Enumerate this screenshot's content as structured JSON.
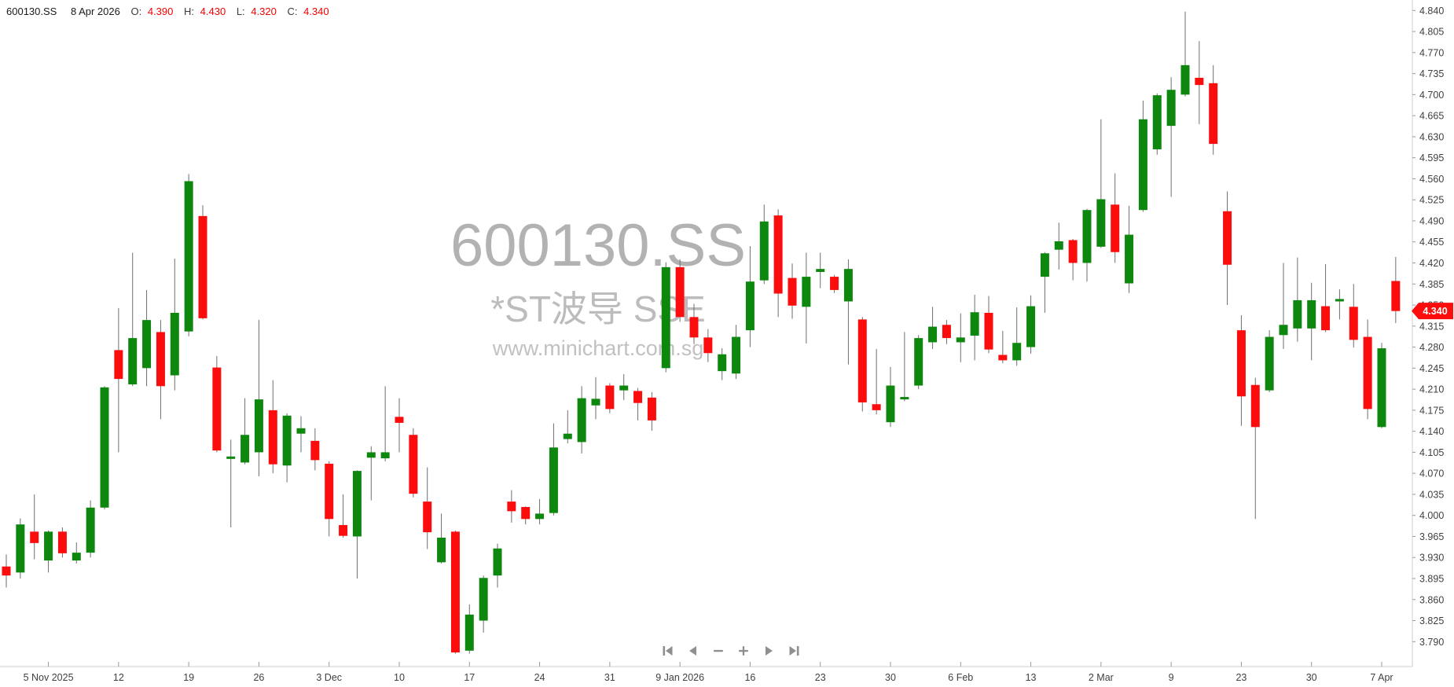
{
  "header": {
    "symbol": "600130.SS",
    "date": "8 Apr 2026",
    "open_label": "O:",
    "open": "4.390",
    "high_label": "H:",
    "high": "4.430",
    "low_label": "L:",
    "low": "4.320",
    "close_label": "C:",
    "close": "4.340"
  },
  "watermark": {
    "line1": "600130.SS",
    "line2": "*ST波导 SSE",
    "line3": "www.minichart.com.sg"
  },
  "price_badge": "4.340",
  "price_badge_value": 4.34,
  "colors": {
    "up": "#0e870e",
    "down": "#fb0d0d",
    "wick": "#6e6e6e",
    "axis_line": "#cfcfcf",
    "tick": "#9a9a9a",
    "axis_text": "#3f3f3f",
    "header_value": "#f20000",
    "watermark": "#b7b7b7",
    "badge_bg": "#fb0d0d",
    "badge_text": "#ffffff",
    "nav_icon": "#8f8f8f"
  },
  "nav": {
    "buttons": [
      {
        "name": "skip-start-button",
        "icon": "skip-start-icon"
      },
      {
        "name": "step-back-button",
        "icon": "triangle-left-icon"
      },
      {
        "name": "zoom-out-button",
        "icon": "minus-icon"
      },
      {
        "name": "zoom-in-button",
        "icon": "plus-icon"
      },
      {
        "name": "step-forward-button",
        "icon": "triangle-right-icon"
      },
      {
        "name": "skip-end-button",
        "icon": "skip-end-icon"
      }
    ]
  },
  "chart_data": {
    "type": "candlestick",
    "title": "600130.SS daily candlestick chart",
    "ylabel": "Price",
    "ylim": [
      3.79,
      4.84
    ],
    "grid": false,
    "y_axis": {
      "max": 4.84,
      "min": 3.79,
      "step": 0.035,
      "labels": [
        "4.840",
        "4.805",
        "4.770",
        "4.735",
        "4.700",
        "4.665",
        "4.630",
        "4.595",
        "4.560",
        "4.525",
        "4.490",
        "4.455",
        "4.420",
        "4.385",
        "4.350",
        "4.315",
        "4.280",
        "4.245",
        "4.210",
        "4.175",
        "4.140",
        "4.105",
        "4.070",
        "4.035",
        "4.000",
        "3.965",
        "3.930",
        "3.895",
        "3.860",
        "3.825",
        "3.790"
      ]
    },
    "x_axis": {
      "ticks": [
        {
          "label": "5 Nov 2025",
          "index": 3
        },
        {
          "label": "12",
          "index": 8
        },
        {
          "label": "19",
          "index": 13
        },
        {
          "label": "26",
          "index": 18
        },
        {
          "label": "3 Dec",
          "index": 23
        },
        {
          "label": "10",
          "index": 28
        },
        {
          "label": "17",
          "index": 33
        },
        {
          "label": "24",
          "index": 38
        },
        {
          "label": "31",
          "index": 43
        },
        {
          "label": "9 Jan 2026",
          "index": 48
        },
        {
          "label": "16",
          "index": 53
        },
        {
          "label": "23",
          "index": 58
        },
        {
          "label": "30",
          "index": 63
        },
        {
          "label": "6 Feb",
          "index": 68
        },
        {
          "label": "13",
          "index": 73
        },
        {
          "label": "2 Mar",
          "index": 78
        },
        {
          "label": "9",
          "index": 83
        },
        {
          "label": "23",
          "index": 88
        },
        {
          "label": "30",
          "index": 93
        },
        {
          "label": "7 Apr",
          "index": 98
        }
      ]
    },
    "candle_format": "[open, high, low, close]",
    "candles": [
      [
        3.915,
        3.935,
        3.88,
        3.9
      ],
      [
        3.905,
        3.995,
        3.895,
        3.985
      ],
      [
        3.973,
        4.035,
        3.927,
        3.954
      ],
      [
        3.925,
        3.975,
        3.905,
        3.973
      ],
      [
        3.973,
        3.98,
        3.93,
        3.937
      ],
      [
        3.925,
        3.955,
        3.92,
        3.938
      ],
      [
        3.938,
        4.025,
        3.93,
        4.013
      ],
      [
        4.013,
        4.215,
        4.01,
        4.213
      ],
      [
        4.275,
        4.345,
        4.105,
        4.227
      ],
      [
        4.218,
        4.437,
        4.215,
        4.295
      ],
      [
        4.245,
        4.375,
        4.215,
        4.325
      ],
      [
        4.305,
        4.325,
        4.16,
        4.215
      ],
      [
        4.233,
        4.427,
        4.208,
        4.337
      ],
      [
        4.306,
        4.568,
        4.298,
        4.556
      ],
      [
        4.498,
        4.516,
        4.326,
        4.328
      ],
      [
        4.246,
        4.265,
        4.105,
        4.108
      ],
      [
        4.094,
        4.126,
        3.98,
        4.098
      ],
      [
        4.088,
        4.195,
        4.085,
        4.134
      ],
      [
        4.105,
        4.325,
        4.065,
        4.193
      ],
      [
        4.175,
        4.225,
        4.07,
        4.085
      ],
      [
        4.083,
        4.17,
        4.055,
        4.166
      ],
      [
        4.136,
        4.165,
        4.105,
        4.145
      ],
      [
        4.124,
        4.145,
        4.075,
        4.092
      ],
      [
        4.086,
        4.09,
        3.965,
        3.994
      ],
      [
        3.984,
        4.035,
        3.963,
        3.966
      ],
      [
        3.965,
        4.075,
        3.895,
        4.074
      ],
      [
        4.096,
        4.115,
        4.025,
        4.105
      ],
      [
        4.095,
        4.215,
        4.09,
        4.105
      ],
      [
        4.164,
        4.195,
        4.105,
        4.154
      ],
      [
        4.134,
        4.145,
        4.03,
        4.036
      ],
      [
        4.023,
        4.08,
        3.944,
        3.972
      ],
      [
        3.922,
        4.003,
        3.92,
        3.963
      ],
      [
        3.973,
        3.975,
        3.77,
        3.772
      ],
      [
        3.775,
        3.852,
        3.77,
        3.835
      ],
      [
        3.825,
        3.9,
        3.805,
        3.896
      ],
      [
        3.9,
        3.953,
        3.88,
        3.945
      ],
      [
        4.023,
        4.042,
        3.988,
        4.007
      ],
      [
        4.014,
        4.015,
        3.985,
        3.994
      ],
      [
        3.994,
        4.027,
        3.985,
        4.003
      ],
      [
        4.004,
        4.153,
        4.0,
        4.113
      ],
      [
        4.127,
        4.175,
        4.12,
        4.136
      ],
      [
        4.122,
        4.215,
        4.103,
        4.195
      ],
      [
        4.183,
        4.23,
        4.16,
        4.194
      ],
      [
        4.216,
        4.22,
        4.17,
        4.177
      ],
      [
        4.208,
        4.235,
        4.192,
        4.216
      ],
      [
        4.207,
        4.212,
        4.158,
        4.187
      ],
      [
        4.196,
        4.205,
        4.141,
        4.158
      ],
      [
        4.245,
        4.421,
        4.238,
        4.413
      ],
      [
        4.413,
        4.426,
        4.322,
        4.33
      ],
      [
        4.33,
        4.352,
        4.285,
        4.296
      ],
      [
        4.296,
        4.31,
        4.255,
        4.27
      ],
      [
        4.24,
        4.278,
        4.225,
        4.268
      ],
      [
        4.236,
        4.317,
        4.227,
        4.297
      ],
      [
        4.308,
        4.448,
        4.28,
        4.389
      ],
      [
        4.391,
        4.517,
        4.385,
        4.489
      ],
      [
        4.499,
        4.509,
        4.33,
        4.369
      ],
      [
        4.395,
        4.419,
        4.327,
        4.349
      ],
      [
        4.347,
        4.437,
        4.286,
        4.397
      ],
      [
        4.405,
        4.437,
        4.378,
        4.41
      ],
      [
        4.397,
        4.4,
        4.37,
        4.375
      ],
      [
        4.356,
        4.426,
        4.251,
        4.41
      ],
      [
        4.326,
        4.33,
        4.173,
        4.188
      ],
      [
        4.185,
        4.277,
        4.168,
        4.175
      ],
      [
        4.155,
        4.247,
        4.147,
        4.216
      ],
      [
        4.193,
        4.305,
        4.19,
        4.197
      ],
      [
        4.216,
        4.3,
        4.21,
        4.295
      ],
      [
        4.288,
        4.347,
        4.277,
        4.314
      ],
      [
        4.317,
        4.325,
        4.285,
        4.295
      ],
      [
        4.288,
        4.336,
        4.255,
        4.296
      ],
      [
        4.299,
        4.367,
        4.258,
        4.338
      ],
      [
        4.337,
        4.365,
        4.27,
        4.276
      ],
      [
        4.267,
        4.307,
        4.253,
        4.258
      ],
      [
        4.258,
        4.346,
        4.249,
        4.287
      ],
      [
        4.28,
        4.366,
        4.269,
        4.348
      ],
      [
        4.397,
        4.438,
        4.337,
        4.436
      ],
      [
        4.442,
        4.487,
        4.409,
        4.456
      ],
      [
        4.458,
        4.46,
        4.391,
        4.42
      ],
      [
        4.42,
        4.51,
        4.389,
        4.508
      ],
      [
        4.447,
        4.659,
        4.445,
        4.526
      ],
      [
        4.517,
        4.569,
        4.42,
        4.438
      ],
      [
        4.386,
        4.515,
        4.37,
        4.467
      ],
      [
        4.508,
        4.69,
        4.505,
        4.659
      ],
      [
        4.609,
        4.702,
        4.6,
        4.699
      ],
      [
        4.648,
        4.729,
        4.53,
        4.708
      ],
      [
        4.7,
        4.838,
        4.697,
        4.749
      ],
      [
        4.728,
        4.789,
        4.651,
        4.716
      ],
      [
        4.719,
        4.749,
        4.6,
        4.618
      ],
      [
        4.506,
        4.539,
        4.35,
        4.417
      ],
      [
        4.308,
        4.333,
        4.149,
        4.198
      ],
      [
        4.217,
        4.229,
        3.994,
        4.147
      ],
      [
        4.208,
        4.308,
        4.205,
        4.297
      ],
      [
        4.3,
        4.42,
        4.277,
        4.317
      ],
      [
        4.311,
        4.429,
        4.289,
        4.358
      ],
      [
        4.311,
        4.387,
        4.258,
        4.358
      ],
      [
        4.348,
        4.418,
        4.305,
        4.308
      ],
      [
        4.356,
        4.376,
        4.326,
        4.36
      ],
      [
        4.347,
        4.385,
        4.279,
        4.292
      ],
      [
        4.297,
        4.326,
        4.16,
        4.177
      ],
      [
        4.147,
        4.287,
        4.145,
        4.278
      ],
      [
        4.39,
        4.43,
        4.32,
        4.34
      ]
    ]
  }
}
